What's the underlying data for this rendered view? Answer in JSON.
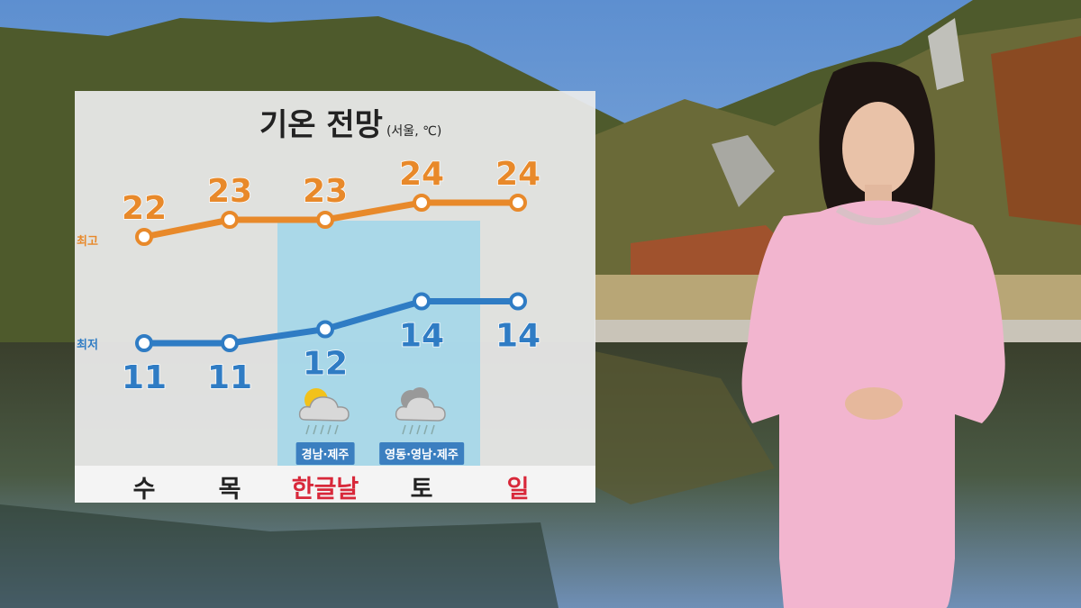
{
  "chart_data": {
    "type": "line",
    "title": "기온 전망",
    "subtitle": "(서울, ℃)",
    "categories": [
      "수",
      "목",
      "한글날",
      "토",
      "일"
    ],
    "category_colors": [
      "#222222",
      "#222222",
      "#d8283a",
      "#222222",
      "#d8283a"
    ],
    "highlight_categories": [
      "한글날",
      "토"
    ],
    "series": [
      {
        "name": "최고",
        "color": "#e8892a",
        "values": [
          22,
          23,
          23,
          24,
          24
        ]
      },
      {
        "name": "최저",
        "color": "#2f7cc4",
        "values": [
          11,
          11,
          12,
          14,
          14
        ]
      }
    ],
    "weather": [
      {
        "category": "한글날",
        "icon": "partly-cloudy-rain-icon",
        "regions": "경남·제주"
      },
      {
        "category": "토",
        "icon": "cloudy-rain-icon",
        "regions": "영동·영남·제주"
      }
    ]
  }
}
